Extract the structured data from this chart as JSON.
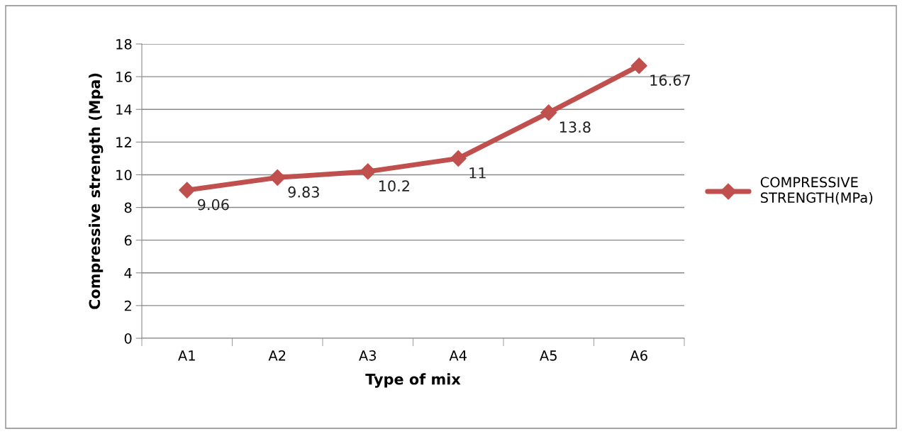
{
  "chart_data": {
    "type": "line",
    "xlabel": "Type of mix",
    "ylabel": "Compressive strength (Mpa)",
    "categories": [
      "A1",
      "A2",
      "A3",
      "A4",
      "A5",
      "A6"
    ],
    "series": [
      {
        "name": "COMPRESSIVE STRENGTH(MPa)",
        "color": "#c0504d",
        "values": [
          9.06,
          9.83,
          10.2,
          11,
          13.8,
          16.67
        ]
      }
    ],
    "ylim": [
      0,
      18
    ],
    "yticks": [
      0,
      2,
      4,
      6,
      8,
      10,
      12,
      14,
      16,
      18
    ],
    "grid": "y",
    "legend": "right",
    "marker": "diamond",
    "line_style": "solid",
    "data_labels": true
  }
}
